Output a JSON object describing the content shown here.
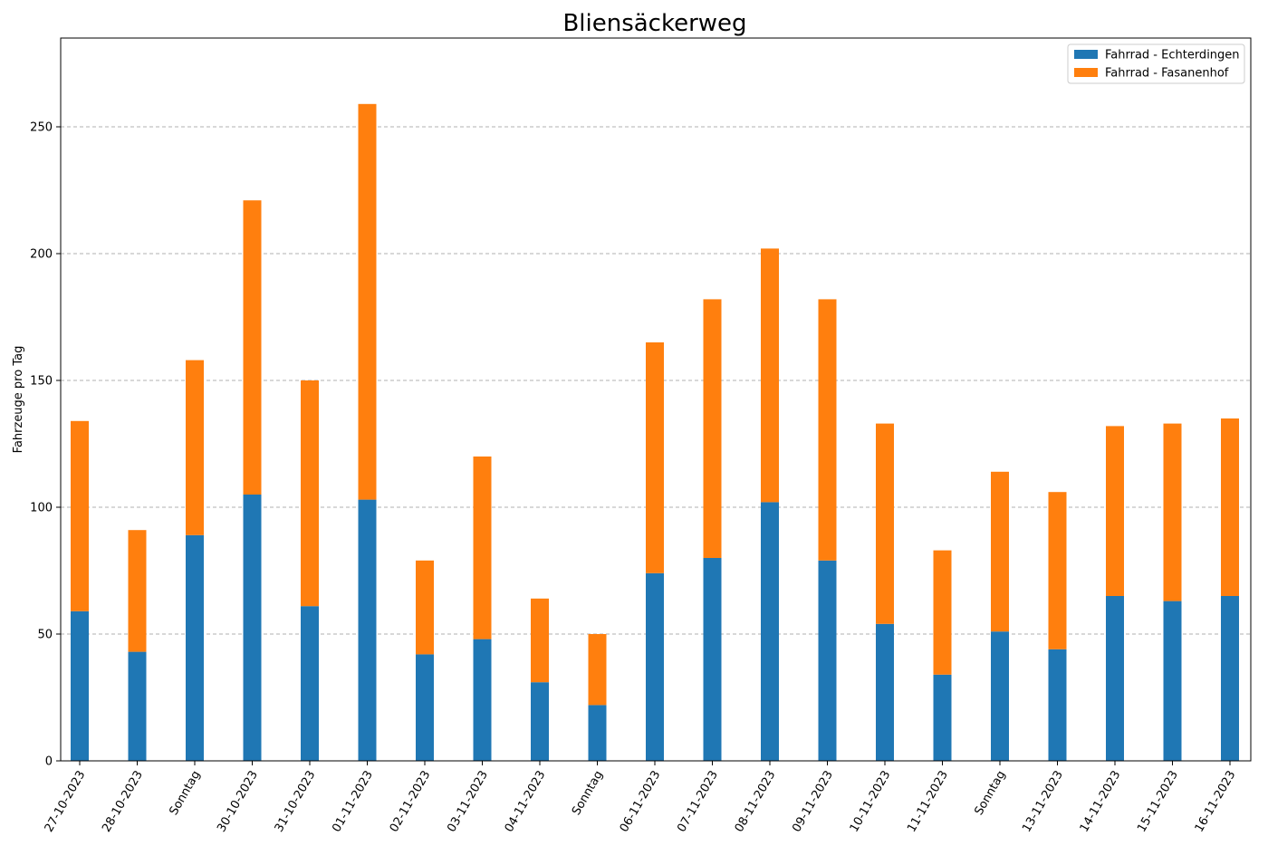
{
  "chart_data": {
    "type": "bar",
    "stacked": true,
    "title": "Bliensäckerweg",
    "xlabel": "",
    "ylabel": "Fahrzeuge pro Tag",
    "ylim": [
      0,
      285
    ],
    "yticks": [
      0,
      50,
      100,
      150,
      200,
      250
    ],
    "grid": "y-dashed",
    "legend_position": "top-right",
    "categories": [
      "27-10-2023",
      "28-10-2023",
      "Sonntag",
      "30-10-2023",
      "31-10-2023",
      "01-11-2023",
      "02-11-2023",
      "03-11-2023",
      "04-11-2023",
      "Sonntag",
      "06-11-2023",
      "07-11-2023",
      "08-11-2023",
      "09-11-2023",
      "10-11-2023",
      "11-11-2023",
      "Sonntag",
      "13-11-2023",
      "14-11-2023",
      "15-11-2023",
      "16-11-2023"
    ],
    "series": [
      {
        "name": "Fahrrad - Echterdingen",
        "color": "#1f77b4",
        "values": [
          59,
          43,
          89,
          105,
          61,
          103,
          42,
          48,
          31,
          22,
          74,
          80,
          102,
          79,
          54,
          34,
          51,
          44,
          65,
          63,
          65
        ]
      },
      {
        "name": "Fahrrad - Fasanenhof",
        "color": "#ff7f0e",
        "values": [
          75,
          48,
          69,
          116,
          89,
          156,
          37,
          72,
          33,
          28,
          91,
          102,
          100,
          103,
          79,
          49,
          63,
          62,
          67,
          70,
          70
        ]
      }
    ]
  }
}
